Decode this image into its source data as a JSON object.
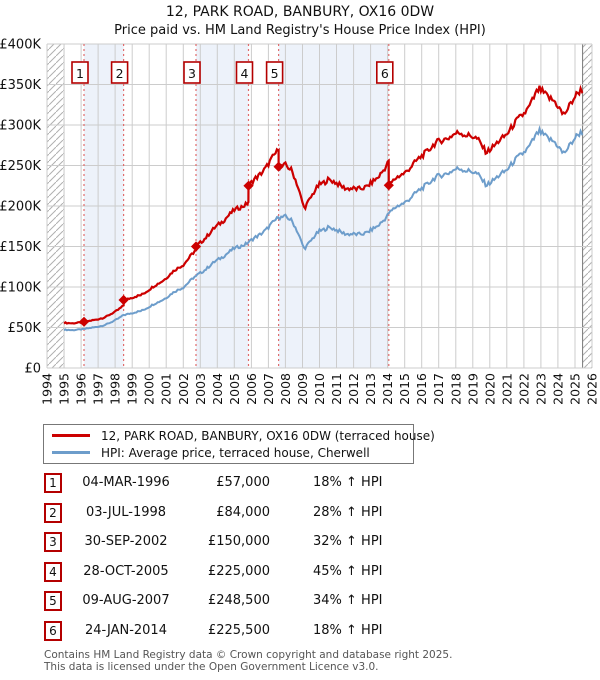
{
  "title": "12, PARK ROAD, BANBURY, OX16 0DW",
  "subtitle": "Price paid vs. HM Land Registry's House Price Index (HPI)",
  "legend": [
    {
      "label": "12, PARK ROAD, BANBURY, OX16 0DW (terraced house)",
      "color": "#cc0000"
    },
    {
      "label": "HPI: Average price, terraced house, Cherwell",
      "color": "#6d9dcb"
    }
  ],
  "sales": [
    {
      "num": "1",
      "date": "04-MAR-1996",
      "price_label": "£57,000",
      "hpi_label": "18% ↑ HPI",
      "year": 1996.17,
      "price": 57000,
      "ratio": 1.18
    },
    {
      "num": "2",
      "date": "03-JUL-1998",
      "price_label": "£84,000",
      "hpi_label": "28% ↑ HPI",
      "year": 1998.5,
      "price": 84000,
      "ratio": 1.28
    },
    {
      "num": "3",
      "date": "30-SEP-2002",
      "price_label": "£150,000",
      "hpi_label": "32% ↑ HPI",
      "year": 2002.75,
      "price": 150000,
      "ratio": 1.32
    },
    {
      "num": "4",
      "date": "28-OCT-2005",
      "price_label": "£225,000",
      "hpi_label": "45% ↑ HPI",
      "year": 2005.83,
      "price": 225000,
      "ratio": 1.45
    },
    {
      "num": "5",
      "date": "09-AUG-2007",
      "price_label": "£248,500",
      "hpi_label": "34% ↑ HPI",
      "year": 2007.6,
      "price": 248500,
      "ratio": 1.34
    },
    {
      "num": "6",
      "date": "24-JAN-2014",
      "price_label": "£225,500",
      "hpi_label": "18% ↑ HPI",
      "year": 2014.07,
      "price": 225500,
      "ratio": 1.18
    }
  ],
  "footer": {
    "line1": "Contains HM Land Registry data © Crown copyright and database right 2025.",
    "line2": "This data is licensed under the Open Government Licence v3.0."
  },
  "chart_data": {
    "type": "line",
    "title": "12, PARK ROAD, BANBURY, OX16 0DW — Price paid vs. HPI",
    "x_range": [
      1994,
      2026
    ],
    "y_range": [
      0,
      400000
    ],
    "y_tick_labels": [
      "£0",
      "£50K",
      "£100K",
      "£150K",
      "£200K",
      "£250K",
      "£300K",
      "£350K",
      "£400K"
    ],
    "x_tick_years": [
      1994,
      1995,
      1996,
      1997,
      1998,
      1999,
      2000,
      2001,
      2002,
      2003,
      2004,
      2005,
      2006,
      2007,
      2008,
      2009,
      2010,
      2011,
      2012,
      2013,
      2014,
      2015,
      2016,
      2017,
      2018,
      2019,
      2020,
      2021,
      2022,
      2023,
      2024,
      2025,
      2026
    ],
    "grid": true,
    "legend_position": "below",
    "series": [
      {
        "name": "12, PARK ROAD, BANBURY, OX16 0DW (terraced house)",
        "derivation": "hpi_times_sale_ratio_piecewise"
      },
      {
        "name": "HPI: Average price, terraced house, Cherwell"
      }
    ],
    "hpi_points": [
      [
        1995.0,
        47500
      ],
      [
        1995.5,
        46500
      ],
      [
        1996.17,
        48300
      ],
      [
        1996.8,
        50000
      ],
      [
        1997.5,
        54000
      ],
      [
        1998.0,
        58500
      ],
      [
        1998.5,
        65600
      ],
      [
        1999.0,
        67500
      ],
      [
        1999.5,
        70500
      ],
      [
        2000.0,
        75500
      ],
      [
        2000.5,
        81000
      ],
      [
        2001.0,
        87000
      ],
      [
        2001.5,
        94000
      ],
      [
        2002.0,
        100000
      ],
      [
        2002.75,
        113600
      ],
      [
        2003.3,
        122000
      ],
      [
        2004.0,
        133000
      ],
      [
        2004.6,
        142000
      ],
      [
        2005.0,
        147000
      ],
      [
        2005.83,
        155200
      ],
      [
        2006.4,
        163000
      ],
      [
        2007.0,
        174000
      ],
      [
        2007.6,
        185400
      ],
      [
        2008.0,
        188000
      ],
      [
        2008.35,
        182000
      ],
      [
        2008.7,
        168000
      ],
      [
        2009.1,
        148000
      ],
      [
        2009.5,
        157000
      ],
      [
        2010.0,
        169000
      ],
      [
        2010.5,
        174000
      ],
      [
        2011.0,
        169500
      ],
      [
        2011.6,
        166000
      ],
      [
        2012.2,
        164000
      ],
      [
        2012.8,
        168000
      ],
      [
        2013.4,
        174000
      ],
      [
        2013.8,
        184000
      ],
      [
        2014.07,
        191100
      ],
      [
        2014.5,
        198000
      ],
      [
        2015.0,
        205000
      ],
      [
        2015.6,
        214000
      ],
      [
        2016.2,
        226000
      ],
      [
        2016.8,
        234000
      ],
      [
        2017.3,
        240000
      ],
      [
        2017.8,
        243000
      ],
      [
        2018.3,
        246000
      ],
      [
        2018.8,
        244000
      ],
      [
        2019.3,
        238000
      ],
      [
        2019.8,
        227000
      ],
      [
        2020.3,
        232000
      ],
      [
        2020.8,
        242000
      ],
      [
        2021.3,
        252000
      ],
      [
        2021.8,
        262000
      ],
      [
        2022.3,
        274000
      ],
      [
        2022.9,
        291000
      ],
      [
        2023.3,
        287000
      ],
      [
        2023.8,
        278000
      ],
      [
        2024.3,
        265000
      ],
      [
        2024.7,
        276000
      ],
      [
        2025.0,
        283000
      ],
      [
        2025.45,
        292000
      ]
    ],
    "data_start_year": 1995.0,
    "data_end_year": 2025.45,
    "shaded_ownership_periods": [
      [
        1996.17,
        1998.5
      ],
      [
        2002.75,
        2005.83
      ],
      [
        2007.6,
        2014.07
      ]
    ],
    "hatched_no_data": [
      [
        1994,
        1995.0
      ],
      [
        2025.45,
        2026
      ]
    ],
    "colors": {
      "price_line": "#cc0000",
      "hpi_line": "#6d9dcb",
      "sale_marker": "#cc0000",
      "sale_dashed_line": "#e06c6c",
      "ownership_band": "#edf2fa",
      "grid": "#cccccc",
      "hatch": "#b0b0b0",
      "hatch_edge": "#777777",
      "marker_box_border": "#b40000"
    }
  }
}
